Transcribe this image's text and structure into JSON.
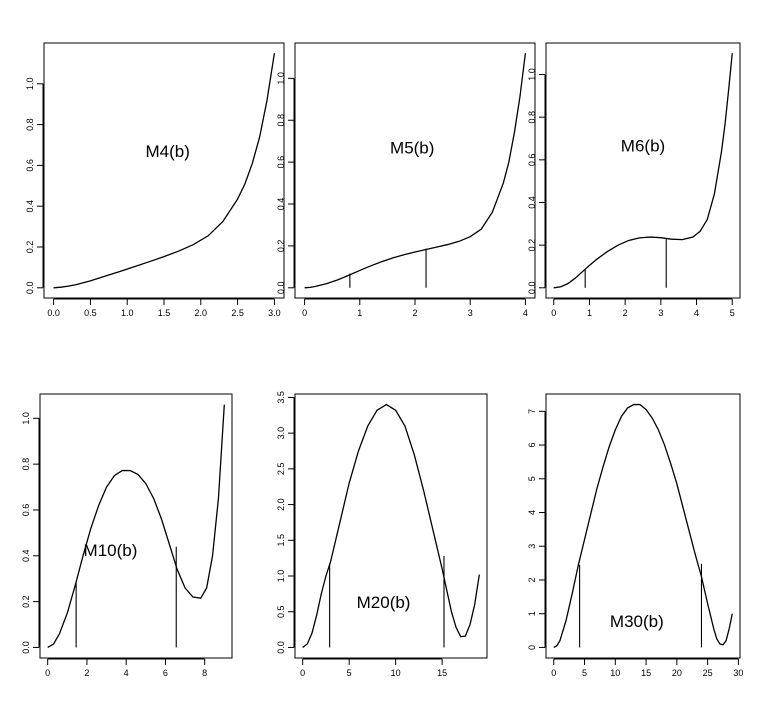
{
  "chart_data": [
    {
      "type": "line",
      "label": "M4(b)",
      "xlim": [
        0,
        3.0
      ],
      "ylim": [
        0,
        1.15
      ],
      "x_ticks": [
        "0.0",
        "0.5",
        "1.0",
        "1.5",
        "2.0",
        "2.5",
        "3.0"
      ],
      "x_tick_values": [
        0,
        0.5,
        1,
        1.5,
        2,
        2.5,
        3
      ],
      "y_ticks": [
        "0.0",
        "0.2",
        "0.4",
        "0.6",
        "0.8",
        "1.0"
      ],
      "y_tick_values": [
        0,
        0.2,
        0.4,
        0.6,
        0.8,
        1.0
      ],
      "x": [
        0,
        0.1,
        0.2,
        0.3,
        0.5,
        0.7,
        0.9,
        1.1,
        1.3,
        1.5,
        1.7,
        1.9,
        2.1,
        2.3,
        2.5,
        2.6,
        2.7,
        2.8,
        2.9,
        3.0
      ],
      "y": [
        0,
        0.003,
        0.008,
        0.015,
        0.034,
        0.057,
        0.08,
        0.104,
        0.128,
        0.153,
        0.18,
        0.212,
        0.255,
        0.325,
        0.435,
        0.51,
        0.61,
        0.74,
        0.92,
        1.15
      ],
      "vlines": [],
      "label_pos": [
        1.55,
        0.64
      ]
    },
    {
      "type": "line",
      "label": "M5(b)",
      "xlim": [
        0,
        4
      ],
      "ylim": [
        0,
        1.12
      ],
      "x_ticks": [
        "0",
        "1",
        "2",
        "3",
        "4"
      ],
      "x_tick_values": [
        0,
        1,
        2,
        3,
        4
      ],
      "y_ticks": [
        "0.0",
        "0.2",
        "0.4",
        "0.6",
        "0.8",
        "1.0"
      ],
      "y_tick_values": [
        0,
        0.2,
        0.4,
        0.6,
        0.8,
        1.0
      ],
      "x": [
        0,
        0.1,
        0.2,
        0.4,
        0.6,
        0.8,
        1.0,
        1.2,
        1.4,
        1.6,
        1.8,
        2.0,
        2.2,
        2.4,
        2.6,
        2.8,
        3.0,
        3.2,
        3.4,
        3.6,
        3.7,
        3.8,
        3.9,
        4.0
      ],
      "y": [
        0,
        0.002,
        0.007,
        0.02,
        0.038,
        0.06,
        0.083,
        0.105,
        0.125,
        0.143,
        0.158,
        0.171,
        0.183,
        0.195,
        0.207,
        0.222,
        0.244,
        0.28,
        0.36,
        0.5,
        0.6,
        0.74,
        0.91,
        1.12
      ],
      "vlines": [
        [
          0.82,
          0.068
        ],
        [
          2.2,
          0.187
        ]
      ],
      "label_pos": [
        1.95,
        0.64
      ]
    },
    {
      "type": "line",
      "label": "M6(b)",
      "xlim": [
        0,
        5
      ],
      "ylim": [
        0,
        1.1
      ],
      "x_ticks": [
        "0",
        "1",
        "2",
        "3",
        "4",
        "5"
      ],
      "x_tick_values": [
        0,
        1,
        2,
        3,
        4,
        5
      ],
      "y_ticks": [
        "0.0",
        "0.2",
        "0.4",
        "0.6",
        "0.8",
        "1.0"
      ],
      "y_tick_values": [
        0,
        0.2,
        0.4,
        0.6,
        0.8,
        1.0
      ],
      "x": [
        0,
        0.2,
        0.4,
        0.6,
        0.8,
        1.0,
        1.2,
        1.5,
        1.8,
        2.1,
        2.4,
        2.7,
        3.0,
        3.3,
        3.6,
        3.9,
        4.1,
        4.3,
        4.5,
        4.7,
        4.8,
        4.9,
        5.0
      ],
      "y": [
        0,
        0.005,
        0.02,
        0.045,
        0.075,
        0.105,
        0.133,
        0.17,
        0.2,
        0.222,
        0.234,
        0.238,
        0.235,
        0.228,
        0.226,
        0.238,
        0.265,
        0.32,
        0.44,
        0.64,
        0.77,
        0.93,
        1.1
      ],
      "vlines": [
        [
          0.88,
          0.085
        ],
        [
          3.15,
          0.232
        ]
      ],
      "label_pos": [
        2.5,
        0.64
      ]
    },
    {
      "type": "line",
      "label": "M10(b)",
      "xlim": [
        0,
        9
      ],
      "ylim": [
        0,
        1.06
      ],
      "x_ticks": [
        "0",
        "2",
        "4",
        "6",
        "8"
      ],
      "x_tick_values": [
        0,
        2,
        4,
        6,
        8
      ],
      "y_ticks": [
        "0.0",
        "0.2",
        "0.4",
        "0.6",
        "0.8",
        "1.0"
      ],
      "y_tick_values": [
        0,
        0.2,
        0.4,
        0.6,
        0.8,
        1.0
      ],
      "x": [
        0,
        0.3,
        0.6,
        1.0,
        1.4,
        1.8,
        2.2,
        2.6,
        3.0,
        3.4,
        3.8,
        4.2,
        4.6,
        5.0,
        5.4,
        5.8,
        6.2,
        6.6,
        7.0,
        7.4,
        7.8,
        8.1,
        8.4,
        8.7,
        9.0
      ],
      "y": [
        0,
        0.015,
        0.06,
        0.15,
        0.27,
        0.4,
        0.52,
        0.62,
        0.7,
        0.75,
        0.772,
        0.772,
        0.755,
        0.715,
        0.65,
        0.56,
        0.45,
        0.34,
        0.26,
        0.22,
        0.215,
        0.26,
        0.4,
        0.65,
        1.06
      ],
      "vlines": [
        [
          1.45,
          0.28
        ],
        [
          6.55,
          0.44
        ]
      ],
      "label_pos": [
        3.2,
        0.4
      ]
    },
    {
      "type": "line",
      "label": "M20(b)",
      "xlim": [
        0,
        19
      ],
      "ylim": [
        0,
        3.4
      ],
      "x_ticks": [
        "0",
        "5",
        "10",
        "15"
      ],
      "x_tick_values": [
        0,
        5,
        10,
        15
      ],
      "y_ticks": [
        "0.0",
        "0.5",
        "1.0",
        "1.5",
        "2.0",
        "2.5",
        "3.0",
        "3.5"
      ],
      "y_tick_values": [
        0,
        0.5,
        1,
        1.5,
        2,
        2.5,
        3,
        3.5
      ],
      "x": [
        0,
        0.5,
        1,
        1.5,
        2,
        2.5,
        3,
        4,
        5,
        6,
        7,
        8,
        9,
        10,
        11,
        12,
        13,
        14,
        15,
        15.5,
        16,
        16.5,
        17,
        17.5,
        18,
        18.5,
        19
      ],
      "y": [
        0,
        0.05,
        0.2,
        0.45,
        0.75,
        1.0,
        1.2,
        1.75,
        2.3,
        2.75,
        3.1,
        3.32,
        3.4,
        3.32,
        3.1,
        2.7,
        2.2,
        1.65,
        1.1,
        0.8,
        0.5,
        0.28,
        0.15,
        0.16,
        0.32,
        0.6,
        1.02
      ],
      "vlines": [
        [
          2.9,
          1.18
        ],
        [
          15.2,
          1.28
        ]
      ],
      "label_pos": [
        8.7,
        0.55
      ]
    },
    {
      "type": "line",
      "label": "M30(b)",
      "xlim": [
        0,
        29
      ],
      "ylim": [
        0,
        7.2
      ],
      "x_ticks": [
        "0",
        "5",
        "10",
        "15",
        "20",
        "25",
        "30"
      ],
      "x_tick_values": [
        0,
        5,
        10,
        15,
        20,
        25,
        30
      ],
      "y_ticks": [
        "0",
        "1",
        "2",
        "3",
        "4",
        "5",
        "6",
        "7"
      ],
      "y_tick_values": [
        0,
        1,
        2,
        3,
        4,
        5,
        6,
        7
      ],
      "x": [
        0,
        0.5,
        1,
        2,
        3,
        4,
        5,
        6,
        7,
        8,
        9,
        10,
        11,
        12,
        13,
        14,
        15,
        16,
        17,
        18,
        19,
        20,
        21,
        22,
        23,
        24,
        25,
        26,
        26.5,
        27,
        27.5,
        28,
        28.5,
        29
      ],
      "y": [
        0,
        0.05,
        0.2,
        0.8,
        1.6,
        2.45,
        3.2,
        3.95,
        4.7,
        5.35,
        5.95,
        6.45,
        6.85,
        7.1,
        7.2,
        7.2,
        7.05,
        6.8,
        6.45,
        6.0,
        5.45,
        4.85,
        4.15,
        3.45,
        2.75,
        2.1,
        1.3,
        0.55,
        0.25,
        0.1,
        0.08,
        0.2,
        0.55,
        1.0
      ],
      "vlines": [
        [
          4.2,
          2.45
        ],
        [
          24.0,
          2.48
        ]
      ],
      "label_pos": [
        13.5,
        0.6
      ]
    }
  ]
}
